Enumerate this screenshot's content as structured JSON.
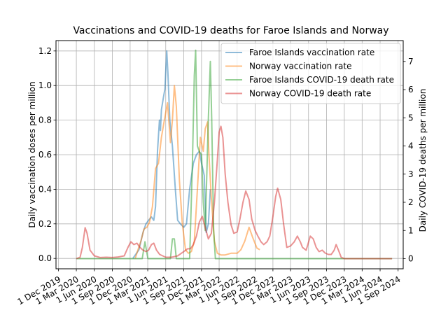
{
  "chart_data": {
    "type": "line",
    "title": "Vaccinations and COVID-19 deaths for Faroe Islands and Norway",
    "ylabel_left": "Daily vaccination doses per million",
    "ylabel_right": "Daily COVID-19 deaths per million",
    "xlabel": "",
    "x_ticks": [
      "1 Dec 2019",
      "1 Mar 2020",
      "1 Jun 2020",
      "1 Sep 2020",
      "1 Dec 2020",
      "1 Mar 2021",
      "1 Jun 2021",
      "1 Sep 2021",
      "1 Dec 2021",
      "1 Mar 2022",
      "1 Jun 2022",
      "1 Sep 2022",
      "1 Dec 2022",
      "1 Mar 2023",
      "1 Jun 2023",
      "1 Sep 2023",
      "1 Dec 2023",
      "1 Mar 2024",
      "1 Jun 2024",
      "1 Sep 2024"
    ],
    "x_range": [
      "2019-11-18",
      "2024-09-27"
    ],
    "y_left_range": [
      -0.06,
      1.26
    ],
    "y_left_ticks": [
      "0.0",
      "0.2",
      "0.4",
      "0.6",
      "0.8",
      "1.0",
      "1.2"
    ],
    "y_right_range": [
      -0.36,
      7.74
    ],
    "y_right_ticks": [
      "0",
      "1",
      "2",
      "3",
      "4",
      "5",
      "6",
      "7"
    ],
    "grid": true,
    "legend_position": "top-right",
    "series": [
      {
        "name": "Faroe Islands vaccination rate",
        "axis": "left",
        "color": "#1f77b4",
        "points": [
          [
            "2020-12-15",
            0.0
          ],
          [
            "2021-01-15",
            0.05
          ],
          [
            "2021-02-05",
            0.15
          ],
          [
            "2021-02-20",
            0.2
          ],
          [
            "2021-03-05",
            0.22
          ],
          [
            "2021-03-20",
            0.24
          ],
          [
            "2021-04-01",
            0.22
          ],
          [
            "2021-04-10",
            0.3
          ],
          [
            "2021-04-20",
            0.62
          ],
          [
            "2021-04-30",
            0.8
          ],
          [
            "2021-05-05",
            0.74
          ],
          [
            "2021-05-10",
            0.86
          ],
          [
            "2021-05-20",
            0.93
          ],
          [
            "2021-05-28",
            0.98
          ],
          [
            "2021-06-02",
            1.1
          ],
          [
            "2021-06-06",
            1.2
          ],
          [
            "2021-06-12",
            1.08
          ],
          [
            "2021-06-22",
            0.8
          ],
          [
            "2021-07-05",
            0.65
          ],
          [
            "2021-07-20",
            0.4
          ],
          [
            "2021-08-01",
            0.22
          ],
          [
            "2021-08-15",
            0.2
          ],
          [
            "2021-09-01",
            0.18
          ],
          [
            "2021-09-15",
            0.2
          ],
          [
            "2021-10-01",
            0.4
          ],
          [
            "2021-10-20",
            0.55
          ],
          [
            "2021-11-05",
            0.6
          ],
          [
            "2021-11-20",
            0.62
          ],
          [
            "2021-12-01",
            0.55
          ],
          [
            "2021-12-15",
            0.48
          ],
          [
            "2021-12-25",
            0.15
          ],
          [
            "2022-01-05",
            0.2
          ],
          [
            "2022-01-15",
            0.4
          ]
        ]
      },
      {
        "name": "Norway vaccination rate",
        "axis": "left",
        "color": "#ff7f0e",
        "points": [
          [
            "2020-12-27",
            0.0
          ],
          [
            "2021-01-10",
            0.05
          ],
          [
            "2021-01-25",
            0.1
          ],
          [
            "2021-02-10",
            0.17
          ],
          [
            "2021-02-25",
            0.18
          ],
          [
            "2021-03-10",
            0.21
          ],
          [
            "2021-03-25",
            0.3
          ],
          [
            "2021-04-10",
            0.52
          ],
          [
            "2021-04-25",
            0.55
          ],
          [
            "2021-05-10",
            0.7
          ],
          [
            "2021-05-25",
            0.8
          ],
          [
            "2021-06-10",
            0.9
          ],
          [
            "2021-06-25",
            0.67
          ],
          [
            "2021-07-05",
            0.8
          ],
          [
            "2021-07-15",
            1.0
          ],
          [
            "2021-07-25",
            0.88
          ],
          [
            "2021-08-10",
            0.45
          ],
          [
            "2021-08-25",
            0.2
          ],
          [
            "2021-09-10",
            0.05
          ],
          [
            "2021-09-25",
            0.03
          ],
          [
            "2021-10-10",
            0.04
          ],
          [
            "2021-10-25",
            0.1
          ],
          [
            "2021-11-10",
            0.4
          ],
          [
            "2021-11-25",
            0.7
          ],
          [
            "2021-12-10",
            0.62
          ],
          [
            "2021-12-20",
            0.75
          ],
          [
            "2022-01-01",
            0.79
          ],
          [
            "2022-01-08",
            0.6
          ],
          [
            "2022-01-20",
            0.35
          ],
          [
            "2022-02-05",
            0.1
          ],
          [
            "2022-02-20",
            0.03
          ],
          [
            "2022-03-10",
            0.02
          ],
          [
            "2022-04-01",
            0.02
          ],
          [
            "2022-05-01",
            0.03
          ],
          [
            "2022-06-01",
            0.03
          ],
          [
            "2022-06-20",
            0.05
          ],
          [
            "2022-07-10",
            0.1
          ],
          [
            "2022-08-01",
            0.18
          ],
          [
            "2022-08-20",
            0.12
          ],
          [
            "2022-09-10",
            0.06
          ],
          [
            "2022-09-25",
            0.05
          ]
        ]
      },
      {
        "name": "Faroe Islands COVID-19 death rate",
        "axis": "right",
        "color": "#2ca02c",
        "points": [
          [
            "2020-03-01",
            0.0
          ],
          [
            "2021-02-01",
            0.0
          ],
          [
            "2021-02-15",
            0.6
          ],
          [
            "2021-03-02",
            0.0
          ],
          [
            "2021-06-10",
            0.0
          ],
          [
            "2021-06-25",
            0.0
          ],
          [
            "2021-07-05",
            0.7
          ],
          [
            "2021-07-15",
            0.7
          ],
          [
            "2021-07-25",
            0.0
          ],
          [
            "2021-10-01",
            0.0
          ],
          [
            "2021-10-15",
            3.3
          ],
          [
            "2021-10-25",
            6.5
          ],
          [
            "2021-11-01",
            7.4
          ],
          [
            "2021-11-10",
            4.0
          ],
          [
            "2021-11-20",
            3.8
          ],
          [
            "2021-12-01",
            3.7
          ],
          [
            "2021-12-10",
            2.0
          ],
          [
            "2021-12-20",
            1.0
          ],
          [
            "2022-01-05",
            5.0
          ],
          [
            "2022-01-15",
            7.0
          ],
          [
            "2022-01-22",
            5.0
          ],
          [
            "2022-02-01",
            1.0
          ],
          [
            "2022-02-10",
            0.0
          ],
          [
            "2024-08-01",
            0.0
          ]
        ]
      },
      {
        "name": "Norway COVID-19 death rate",
        "axis": "right",
        "color": "#d62728",
        "points": [
          [
            "2020-03-01",
            0.0
          ],
          [
            "2020-03-20",
            0.05
          ],
          [
            "2020-04-01",
            0.4
          ],
          [
            "2020-04-15",
            1.1
          ],
          [
            "2020-04-25",
            0.9
          ],
          [
            "2020-05-10",
            0.3
          ],
          [
            "2020-06-01",
            0.1
          ],
          [
            "2020-07-01",
            0.04
          ],
          [
            "2020-08-01",
            0.05
          ],
          [
            "2020-09-01",
            0.04
          ],
          [
            "2020-10-01",
            0.06
          ],
          [
            "2020-11-01",
            0.1
          ],
          [
            "2020-11-20",
            0.4
          ],
          [
            "2020-12-05",
            0.6
          ],
          [
            "2020-12-20",
            0.5
          ],
          [
            "2021-01-05",
            0.55
          ],
          [
            "2021-01-20",
            0.4
          ],
          [
            "2021-02-05",
            0.3
          ],
          [
            "2021-02-20",
            0.25
          ],
          [
            "2021-03-05",
            0.3
          ],
          [
            "2021-03-20",
            0.5
          ],
          [
            "2021-04-01",
            0.55
          ],
          [
            "2021-04-15",
            0.3
          ],
          [
            "2021-05-01",
            0.15
          ],
          [
            "2021-06-01",
            0.05
          ],
          [
            "2021-07-01",
            0.05
          ],
          [
            "2021-08-01",
            0.1
          ],
          [
            "2021-09-01",
            0.25
          ],
          [
            "2021-09-20",
            0.35
          ],
          [
            "2021-10-05",
            0.35
          ],
          [
            "2021-10-20",
            0.5
          ],
          [
            "2021-11-05",
            0.8
          ],
          [
            "2021-11-20",
            1.3
          ],
          [
            "2021-12-05",
            1.5
          ],
          [
            "2021-12-20",
            1.1
          ],
          [
            "2022-01-05",
            0.7
          ],
          [
            "2022-01-20",
            0.9
          ],
          [
            "2022-02-05",
            2.0
          ],
          [
            "2022-02-20",
            3.5
          ],
          [
            "2022-03-01",
            4.5
          ],
          [
            "2022-03-10",
            4.7
          ],
          [
            "2022-03-20",
            4.3
          ],
          [
            "2022-04-01",
            3.0
          ],
          [
            "2022-04-15",
            2.0
          ],
          [
            "2022-05-01",
            1.2
          ],
          [
            "2022-05-15",
            0.9
          ],
          [
            "2022-06-01",
            0.95
          ],
          [
            "2022-06-15",
            1.4
          ],
          [
            "2022-07-01",
            2.0
          ],
          [
            "2022-07-15",
            2.4
          ],
          [
            "2022-08-01",
            2.1
          ],
          [
            "2022-08-15",
            1.4
          ],
          [
            "2022-09-01",
            1.0
          ],
          [
            "2022-09-15",
            0.8
          ],
          [
            "2022-10-01",
            0.6
          ],
          [
            "2022-10-15",
            0.5
          ],
          [
            "2022-11-01",
            0.6
          ],
          [
            "2022-11-15",
            0.8
          ],
          [
            "2022-12-01",
            1.5
          ],
          [
            "2022-12-15",
            2.2
          ],
          [
            "2022-12-25",
            2.5
          ],
          [
            "2023-01-10",
            2.1
          ],
          [
            "2023-01-25",
            1.2
          ],
          [
            "2023-02-10",
            0.4
          ],
          [
            "2023-03-01",
            0.45
          ],
          [
            "2023-03-20",
            0.6
          ],
          [
            "2023-04-05",
            0.8
          ],
          [
            "2023-04-20",
            0.6
          ],
          [
            "2023-05-01",
            0.4
          ],
          [
            "2023-05-20",
            0.3
          ],
          [
            "2023-06-10",
            0.8
          ],
          [
            "2023-06-25",
            0.7
          ],
          [
            "2023-07-10",
            0.4
          ],
          [
            "2023-07-25",
            0.25
          ],
          [
            "2023-08-10",
            0.3
          ],
          [
            "2023-08-25",
            0.2
          ],
          [
            "2023-09-10",
            0.15
          ],
          [
            "2023-09-25",
            0.15
          ],
          [
            "2023-10-10",
            0.3
          ],
          [
            "2023-10-20",
            0.5
          ],
          [
            "2023-11-01",
            0.3
          ],
          [
            "2023-11-15",
            0.05
          ],
          [
            "2023-12-01",
            0.0
          ],
          [
            "2024-08-01",
            0.0
          ]
        ]
      }
    ]
  }
}
